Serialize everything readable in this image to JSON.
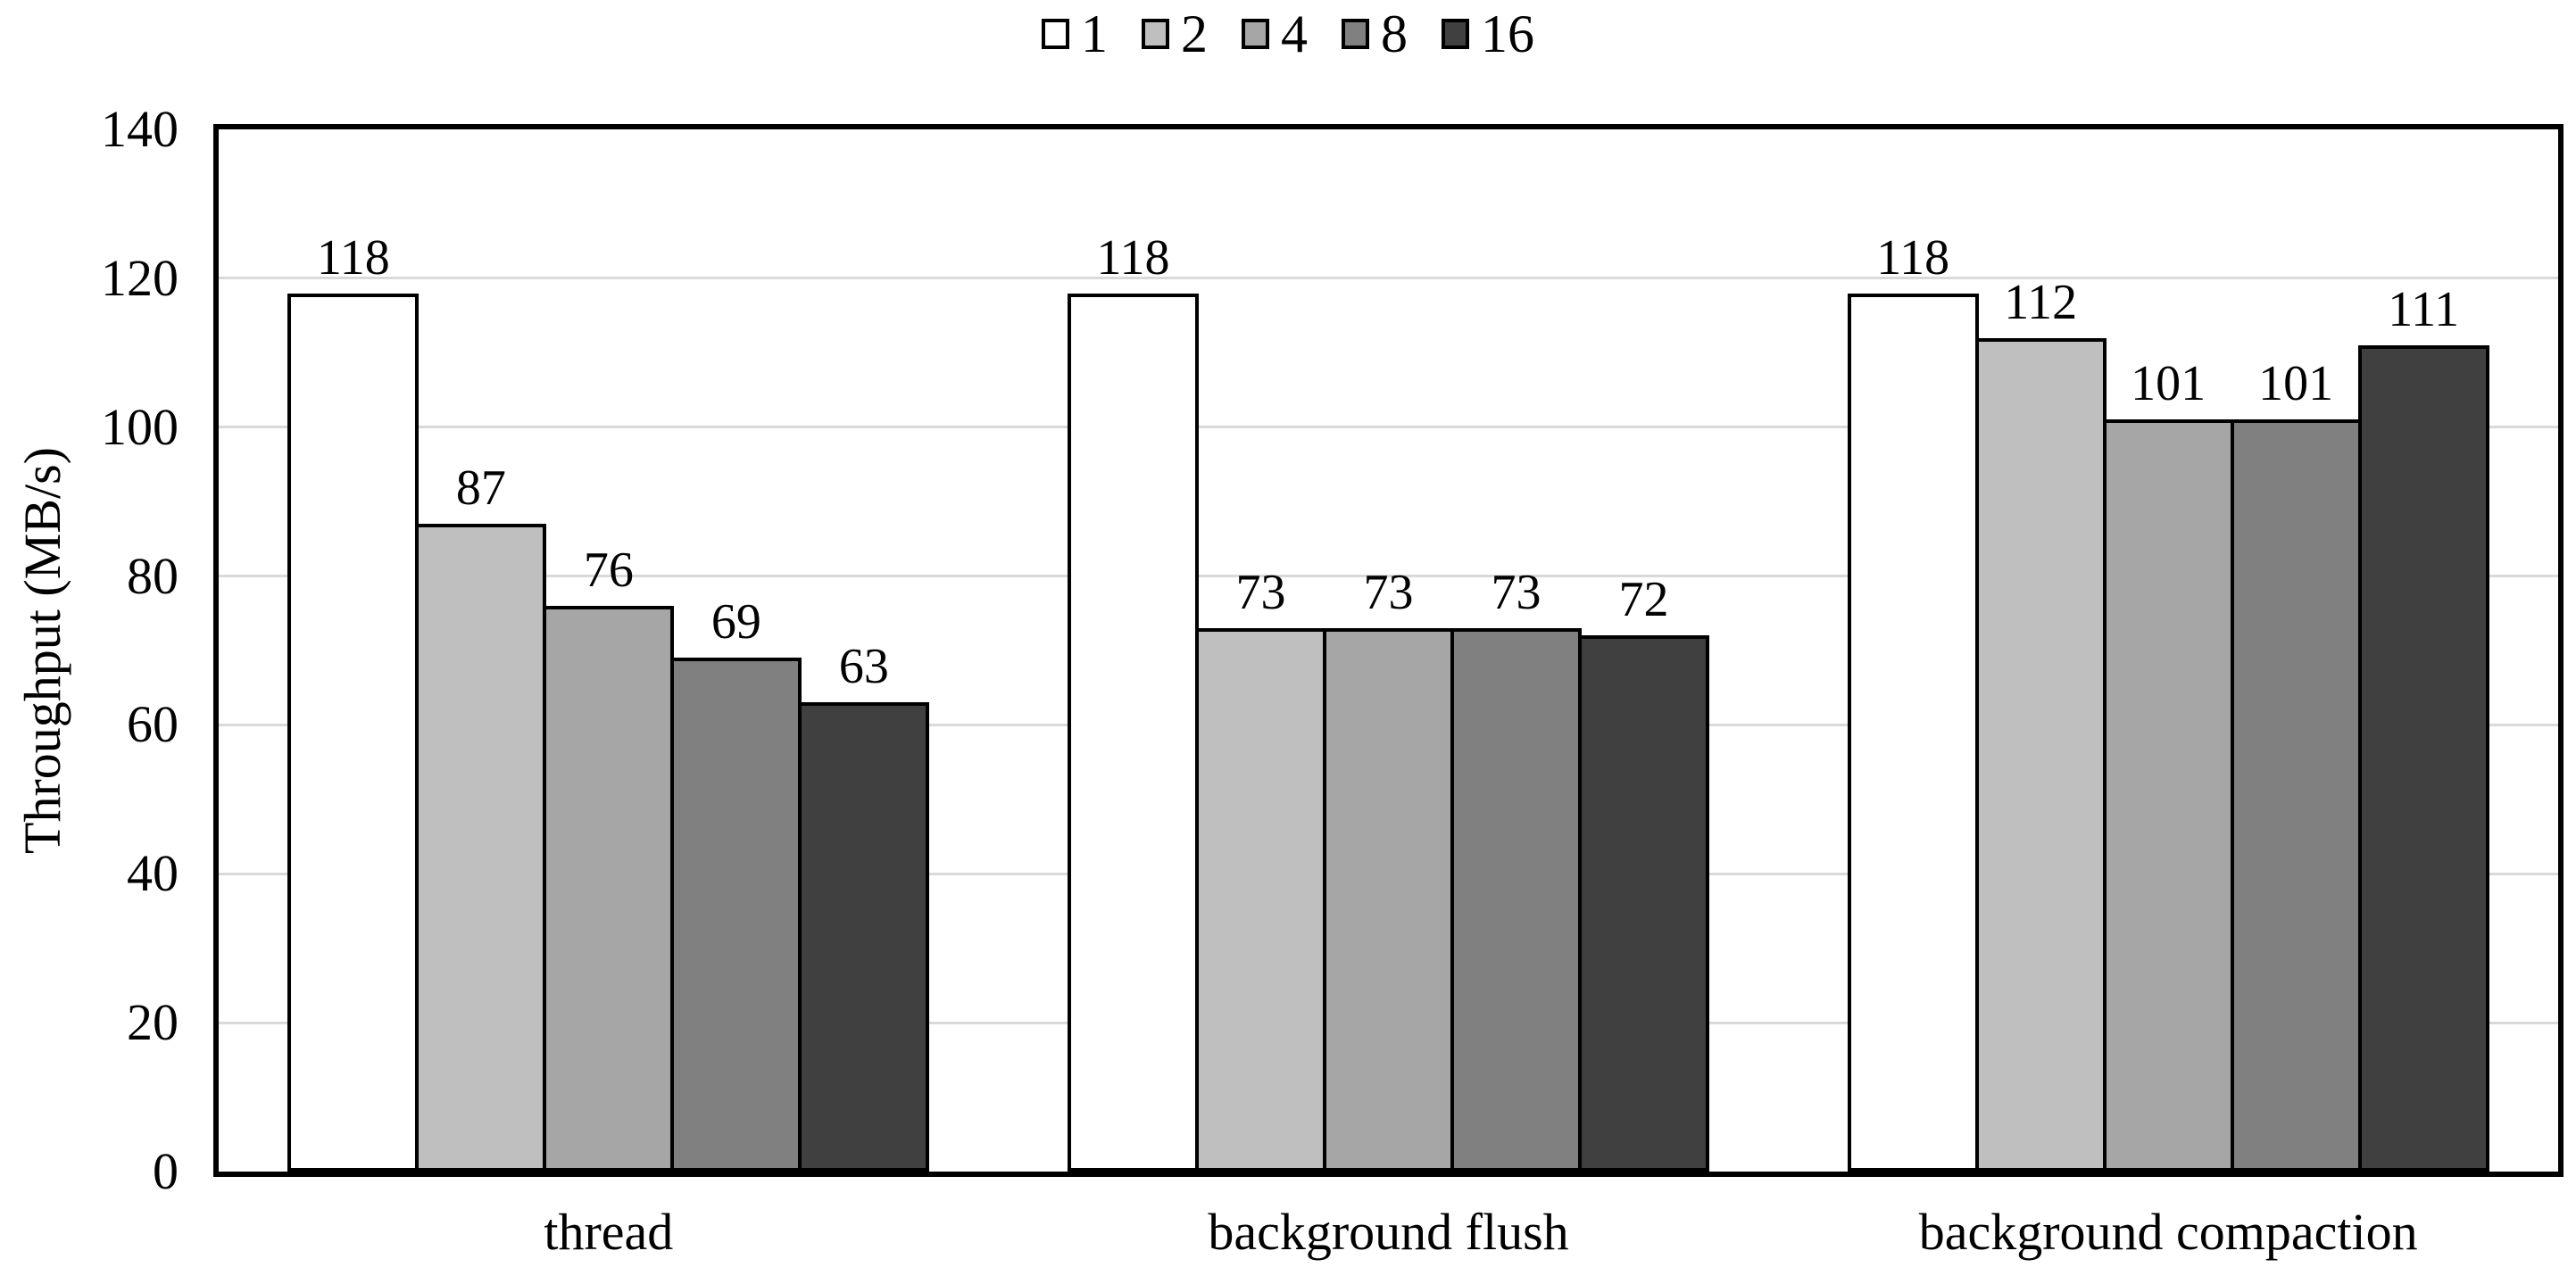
{
  "chart_data": {
    "type": "bar",
    "title": "",
    "ylabel": "Throughput (MB/s)",
    "xlabel": "",
    "categories": [
      "thread",
      "background flush",
      "background compaction"
    ],
    "series": [
      {
        "name": "1",
        "color": "#ffffff",
        "values": [
          118,
          118,
          118
        ]
      },
      {
        "name": "2",
        "color": "#bfbfbf",
        "values": [
          87,
          73,
          112
        ]
      },
      {
        "name": "4",
        "color": "#a6a6a6",
        "values": [
          76,
          73,
          101
        ]
      },
      {
        "name": "8",
        "color": "#808080",
        "values": [
          69,
          73,
          101
        ]
      },
      {
        "name": "16",
        "color": "#404040",
        "values": [
          63,
          72,
          111
        ]
      }
    ],
    "ylim": [
      0,
      140
    ],
    "yticks": [
      0,
      20,
      40,
      60,
      80,
      100,
      120,
      140
    ],
    "grid": true,
    "gridline_color": "#d9d9d9",
    "bar_border_color": "#000000",
    "plot_border_color": "#000000",
    "legend_position": "top",
    "data_labels": true
  }
}
